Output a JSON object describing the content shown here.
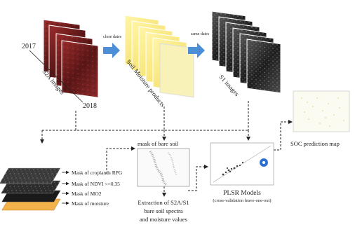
{
  "years": {
    "start": "2017",
    "end": "2018"
  },
  "stacks": {
    "s2a": {
      "label": "S2A images"
    },
    "soil_moisture": {
      "label": "Soil Moisture products"
    },
    "s1": {
      "label": "S1 images"
    }
  },
  "arrows": {
    "close_dates": "close dates",
    "same_dates": "same dates"
  },
  "masks": {
    "items": [
      "Mask of croplands RPG",
      "Mask of NDVI <=0.35",
      "Mask of MO2",
      "Mask of moisture"
    ]
  },
  "bare_soil": {
    "label": "mask of bare soil"
  },
  "extraction": {
    "line1": "Extraction of S2A/S1",
    "line2": "bare soil spectra",
    "line3": "and moisture values"
  },
  "plsr": {
    "title": "PLSR Models",
    "subtitle": "(cross-validation leave-one-out)"
  },
  "soc_map": {
    "label": "SOC prediction map"
  },
  "colors": {
    "s2a_dark": "#5a1a1a",
    "s2a_light": "#9a2a2a",
    "sm_yellow": "#f4e77a",
    "sm_orange": "#f2a24a",
    "s1_dark": "#2a2a2a",
    "arrow_blue": "#4d8fd6"
  }
}
